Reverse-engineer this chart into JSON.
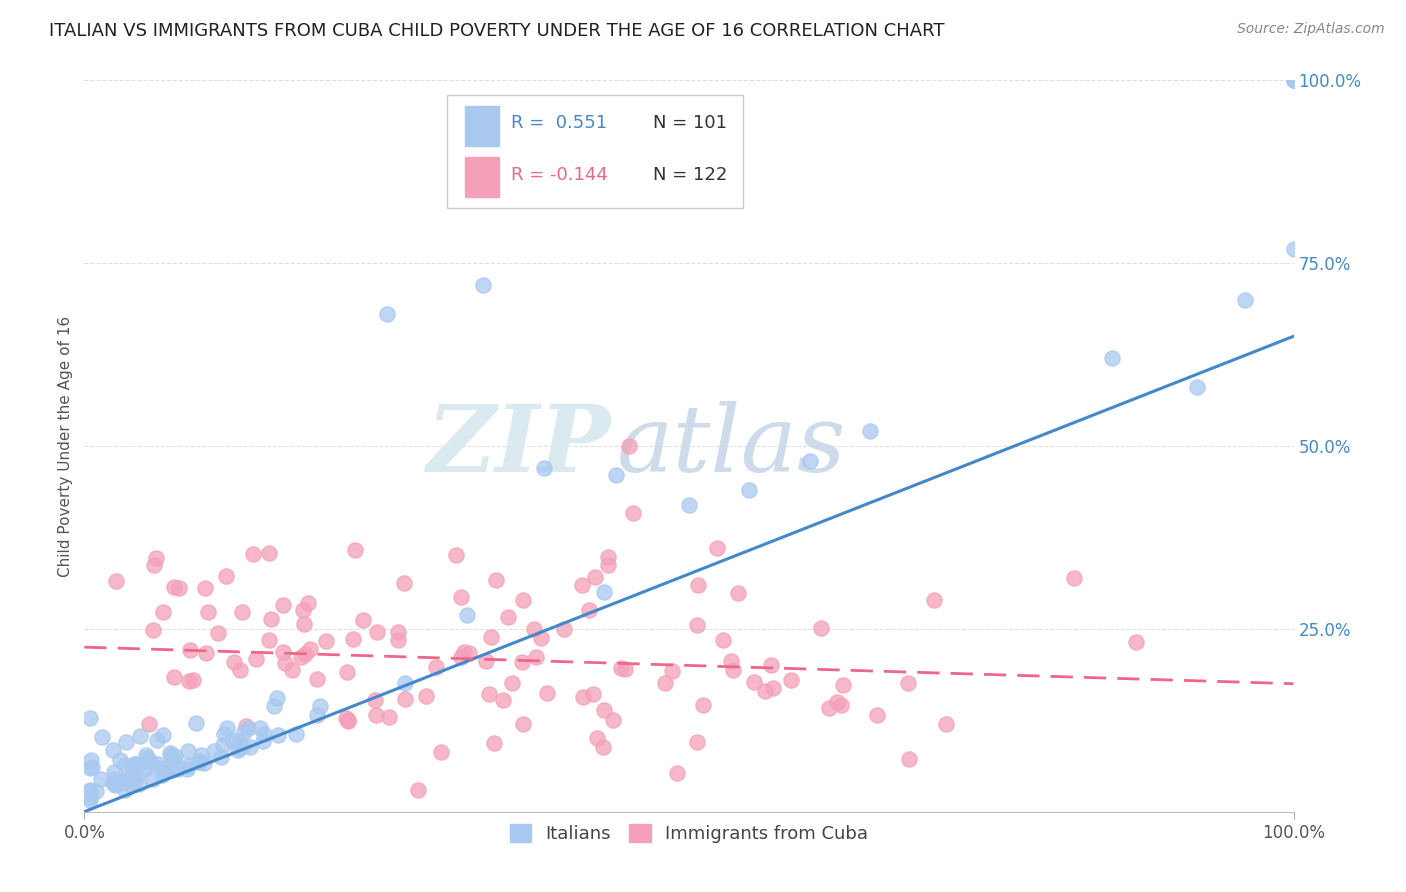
{
  "title": "ITALIAN VS IMMIGRANTS FROM CUBA CHILD POVERTY UNDER THE AGE OF 16 CORRELATION CHART",
  "source_text": "Source: ZipAtlas.com",
  "ylabel": "Child Poverty Under the Age of 16",
  "xlim": [
    0.0,
    1.0
  ],
  "ylim": [
    0.0,
    1.0
  ],
  "x_tick_labels": [
    "0.0%",
    "100.0%"
  ],
  "y_tick_positions": [
    0.0,
    0.25,
    0.5,
    0.75,
    1.0
  ],
  "y_tick_labels": [
    "",
    "25.0%",
    "50.0%",
    "75.0%",
    "100.0%"
  ],
  "legend_r1": "R =  0.551",
  "legend_n1": "N = 101",
  "legend_r2": "R = -0.144",
  "legend_n2": "N = 122",
  "series1_label": "Italians",
  "series2_label": "Immigrants from Cuba",
  "color1": "#a8c8f0",
  "color2": "#f4a0b8",
  "trendline1_color": "#4488cc",
  "trendline2_color": "#ee6688",
  "watermark_zip": "ZIP",
  "watermark_atlas": "atlas",
  "background_color": "#ffffff",
  "grid_color": "#e0e0e0",
  "title_fontsize": 13,
  "tick_fontsize": 12,
  "trendline1_start_y": 0.0,
  "trendline1_end_y": 0.65,
  "trendline2_start_y": 0.225,
  "trendline2_end_y": 0.175
}
